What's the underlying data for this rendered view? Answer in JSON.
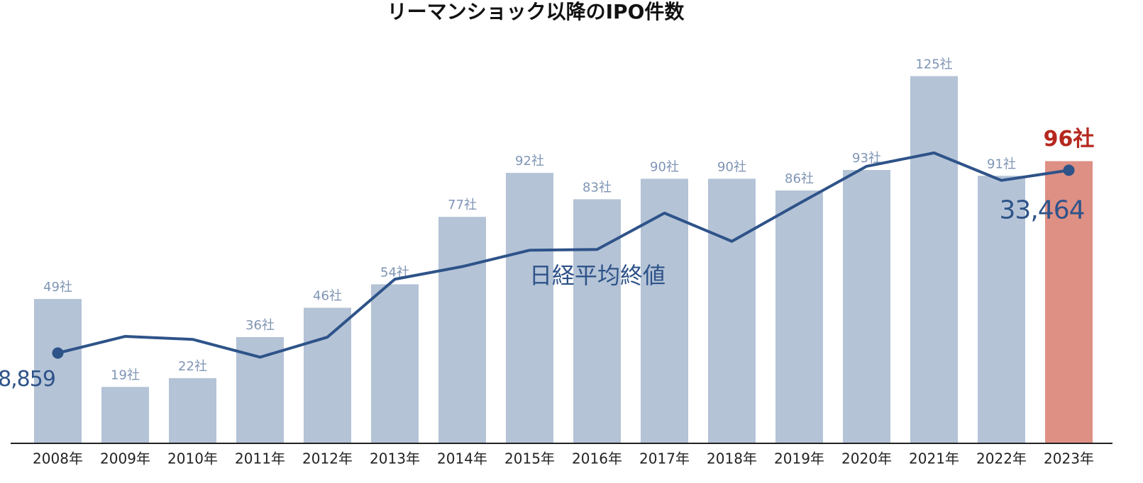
{
  "chart_data": {
    "type": "bar+line",
    "title": "リーマンショック以降のIPO件数",
    "categories": [
      "2008年",
      "2009年",
      "2010年",
      "2011年",
      "2012年",
      "2013年",
      "2014年",
      "2015年",
      "2016年",
      "2017年",
      "2018年",
      "2019年",
      "2020年",
      "2021年",
      "2022年",
      "2023年"
    ],
    "ylim": [
      0,
      150
    ],
    "y2lim": [
      -3200,
      56000
    ],
    "highlight_label_color": "#b5281e",
    "series": [
      {
        "type": "bar",
        "color": "#b4c3d6",
        "colors": [
          "#b4c3d6",
          "#b4c3d6",
          "#b4c3d6",
          "#b4c3d6",
          "#b4c3d6",
          "#b4c3d6",
          "#b4c3d6",
          "#b4c3d6",
          "#b4c3d6",
          "#b4c3d6",
          "#b4c3d6",
          "#b4c3d6",
          "#b4c3d6",
          "#b4c3d6",
          "#b4c3d6",
          "#de9085"
        ],
        "values": [
          49,
          19,
          22,
          36,
          46,
          54,
          77,
          92,
          83,
          90,
          90,
          86,
          93,
          125,
          91,
          96
        ],
        "value_labels": [
          "49社",
          "19社",
          "22社",
          "36社",
          "46社",
          "54社",
          "77社",
          "92社",
          "83社",
          "90社",
          "90社",
          "86社",
          "93社",
          "125社",
          "91社",
          "96社"
        ]
      },
      {
        "type": "line",
        "name": "日経平均終値",
        "axis": "y2",
        "color": "#2e5389",
        "values": [
          8859,
          11100,
          10700,
          8300,
          11000,
          18800,
          20500,
          22700,
          22800,
          27700,
          23900,
          29000,
          34000,
          35800,
          32100,
          33464
        ],
        "value_labels": [
          "8,859",
          null,
          null,
          null,
          null,
          null,
          null,
          null,
          null,
          null,
          null,
          null,
          null,
          null,
          null,
          "33,464"
        ]
      }
    ]
  }
}
